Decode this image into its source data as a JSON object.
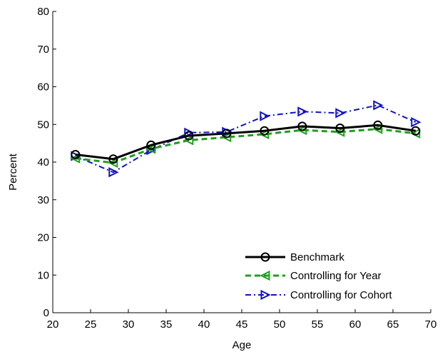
{
  "chart_data": {
    "type": "line",
    "xlabel": "Age",
    "ylabel": "Percent",
    "xlim": [
      20,
      70
    ],
    "ylim": [
      0,
      80
    ],
    "xticks": [
      "20",
      "25",
      "30",
      "35",
      "40",
      "45",
      "50",
      "55",
      "60",
      "65",
      "70"
    ],
    "yticks": [
      "0",
      "10",
      "20",
      "30",
      "40",
      "50",
      "60",
      "70",
      "80"
    ],
    "grid": false,
    "legend_position": "bottom-right",
    "x": [
      23,
      28,
      33,
      38,
      43,
      48,
      53,
      58,
      63,
      68
    ],
    "series": [
      {
        "name": "Benchmark",
        "values": [
          42.0,
          40.8,
          44.5,
          47.0,
          47.6,
          48.3,
          49.5,
          49.0,
          49.8,
          48.3
        ],
        "color": "#000000",
        "dash": "solid",
        "marker": "circle"
      },
      {
        "name": "Controlling for Year",
        "values": [
          41.0,
          39.8,
          43.5,
          45.8,
          46.6,
          47.4,
          48.5,
          48.0,
          48.8,
          47.6
        ],
        "color": "#1f9f1f",
        "dash": "dashed",
        "marker": "triangle-left"
      },
      {
        "name": "Controlling for Cohort",
        "values": [
          41.6,
          37.3,
          43.2,
          47.8,
          48.0,
          52.2,
          53.4,
          53.0,
          55.1,
          50.6
        ],
        "color": "#1010c8",
        "dash": "dashdot",
        "marker": "triangle-right"
      }
    ]
  }
}
